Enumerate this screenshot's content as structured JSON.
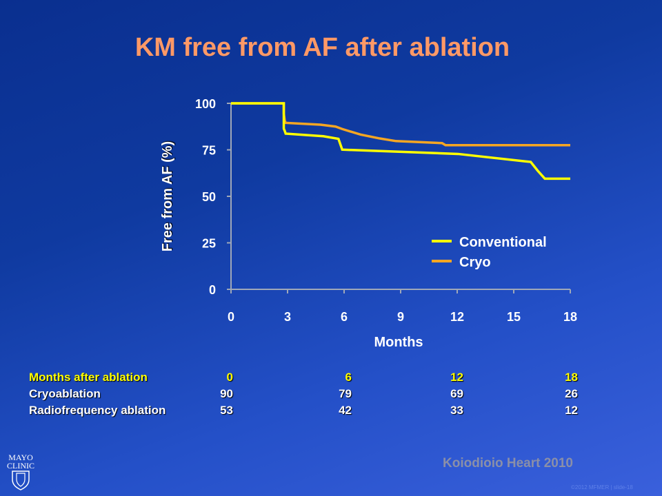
{
  "title": "KM free from AF after ablation",
  "chart_data": {
    "type": "line",
    "step": true,
    "title": "KM free from AF after ablation",
    "xlabel": "Months",
    "ylabel": "Free from AF (%)",
    "xlim": [
      0,
      18
    ],
    "ylim": [
      0,
      100
    ],
    "xticks": [
      0,
      3,
      6,
      9,
      12,
      15,
      18
    ],
    "yticks": [
      0,
      25,
      50,
      75,
      100
    ],
    "legend_position": "right",
    "series": [
      {
        "name": "Conventional",
        "color": "#ffff00",
        "points": [
          [
            0,
            100
          ],
          [
            2.8,
            100
          ],
          [
            2.8,
            86.4
          ],
          [
            2.85,
            85.2
          ],
          [
            2.9,
            83.7
          ],
          [
            4.9,
            82.3
          ],
          [
            5.7,
            80.9
          ],
          [
            5.9,
            75.1
          ],
          [
            12.04,
            72.8
          ],
          [
            15.9,
            68.5
          ],
          [
            16.27,
            63.8
          ],
          [
            16.65,
            59.5
          ],
          [
            18,
            59.5
          ]
        ]
      },
      {
        "name": "Cryo",
        "color": "#f5a623",
        "points": [
          [
            0,
            100
          ],
          [
            2.8,
            100
          ],
          [
            2.8,
            94.4
          ],
          [
            2.85,
            90.7
          ],
          [
            2.9,
            89.5
          ],
          [
            4.75,
            88.5
          ],
          [
            5.55,
            87.5
          ],
          [
            5.9,
            86.2
          ],
          [
            6.87,
            83.2
          ],
          [
            7.9,
            81.1
          ],
          [
            8.75,
            79.7
          ],
          [
            11.2,
            78.6
          ],
          [
            11.38,
            77.5
          ],
          [
            18,
            77.5
          ]
        ]
      }
    ]
  },
  "risk_table": {
    "header": {
      "label": "Months after ablation",
      "values": [
        "0",
        "6",
        "12",
        "18"
      ]
    },
    "rows": [
      {
        "label": "Cryoablation",
        "values": [
          "90",
          "79",
          "69",
          "26"
        ]
      },
      {
        "label": "Radiofrequency ablation",
        "values": [
          "53",
          "42",
          "33",
          "12"
        ]
      }
    ]
  },
  "citation": "Koiodioio Heart 2010",
  "copyright": "©2012 MFMER  |  slide-18",
  "logo_text": [
    "MAYO",
    "CLINIC"
  ]
}
